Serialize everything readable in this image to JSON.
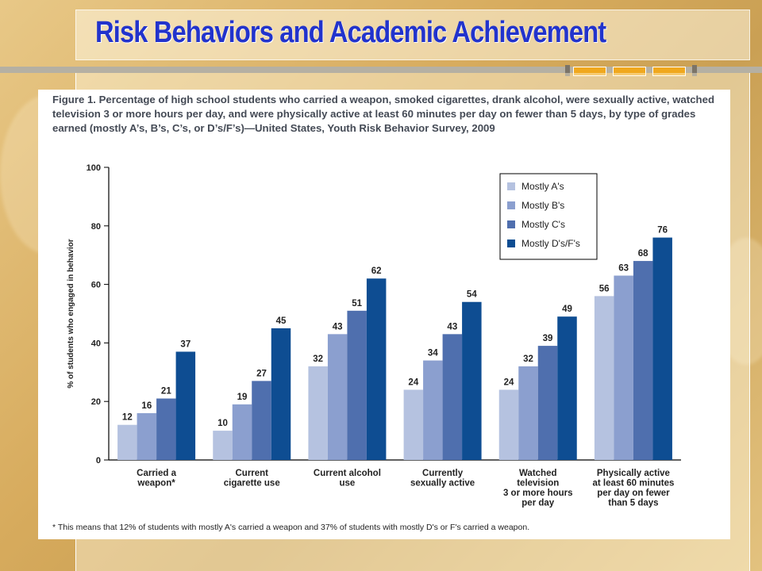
{
  "slide": {
    "title": "Risk Behaviors and Academic Achievement"
  },
  "figure": {
    "caption": "Figure 1. Percentage of high school students who carried a weapon, smoked cigarettes, drank alcohol, were sexually active, watched television 3 or more hours per day, and were physically active at least 60 minutes per day on fewer than 5 days, by type of grades earned (mostly A’s, B’s, C’s, or D’s/F’s)—United States, Youth Risk Behavior Survey, 2009",
    "footnote": "* This means that 12% of students with mostly A's carried a weapon and 37% of students with mostly D's or F's carried a weapon."
  },
  "colors": {
    "series": [
      "#b5c2e0",
      "#8b9fcf",
      "#4f6fae",
      "#0e4d92"
    ],
    "accent": "#f0a81e",
    "title": "#2233cc"
  },
  "chart_data": {
    "type": "bar",
    "title": "",
    "xlabel": "",
    "ylabel": "% of students who engaged in behavior",
    "ylim": [
      0,
      100
    ],
    "yticks": [
      0,
      20,
      40,
      60,
      80,
      100
    ],
    "legend_position": "top-right",
    "categories": [
      [
        "Carried a",
        "weapon*"
      ],
      [
        "Current",
        "cigarette use"
      ],
      [
        "Current alcohol",
        "use"
      ],
      [
        "Currently",
        "sexually active"
      ],
      [
        "Watched",
        "television",
        "3 or more hours",
        "per day"
      ],
      [
        "Physically active",
        "at least 60 minutes",
        "per day on fewer",
        "than 5 days"
      ]
    ],
    "series": [
      {
        "name": "Mostly A's",
        "values": [
          12,
          10,
          32,
          24,
          24,
          56
        ]
      },
      {
        "name": "Mostly B's",
        "values": [
          16,
          19,
          43,
          34,
          32,
          63
        ]
      },
      {
        "name": "Mostly C's",
        "values": [
          21,
          27,
          51,
          43,
          39,
          68
        ]
      },
      {
        "name": "Mostly D's/F's",
        "values": [
          37,
          45,
          62,
          54,
          49,
          76
        ]
      }
    ]
  }
}
